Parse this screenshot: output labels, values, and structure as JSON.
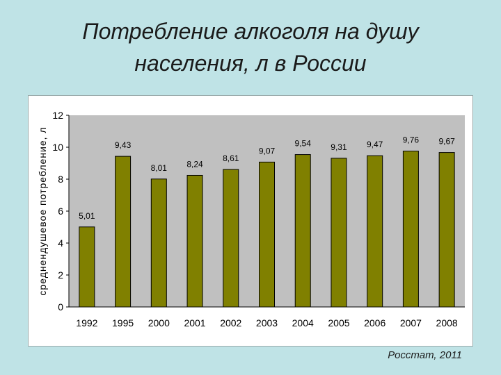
{
  "slide": {
    "title_line1": "Потребление алкоголя на душу",
    "title_line2": "населения, л в России",
    "source": "Росстат, 2011"
  },
  "colors": {
    "background": "#bfe3e6",
    "plot_area": "#c0c0c0",
    "bar_fill": "#808000",
    "bar_stroke": "#000000"
  },
  "chart_data": {
    "type": "bar",
    "categories": [
      "1992",
      "1995",
      "2000",
      "2001",
      "2002",
      "2003",
      "2004",
      "2005",
      "2006",
      "2007",
      "2008"
    ],
    "values": [
      5.01,
      9.43,
      8.01,
      8.24,
      8.61,
      9.07,
      9.54,
      9.31,
      9.47,
      9.76,
      9.67
    ],
    "value_labels": [
      "5,01",
      "9,43",
      "8,01",
      "8,24",
      "8,61",
      "9,07",
      "9,54",
      "9,31",
      "9,47",
      "9,76",
      "9,67"
    ],
    "ylabel": "среднендушевое потребление, л",
    "ylim": [
      0,
      12
    ],
    "yticks": [
      "0",
      "2",
      "4",
      "6",
      "8",
      "10",
      "12"
    ],
    "grid": false,
    "legend": "none"
  }
}
